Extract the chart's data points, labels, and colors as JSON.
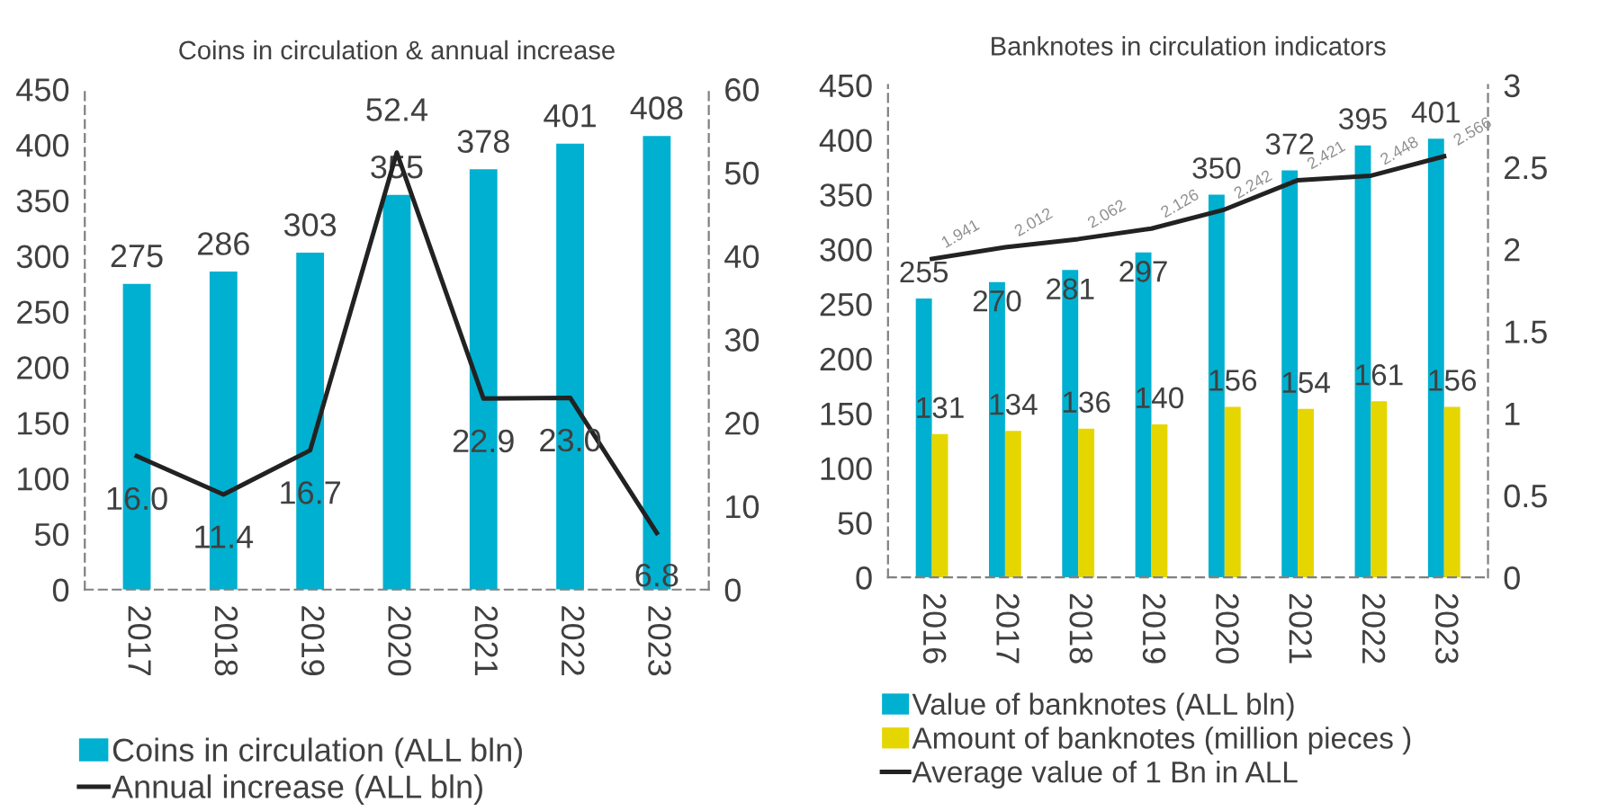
{
  "chart_data": [
    {
      "type": "bar",
      "title": "Coins in circulation & annual increase",
      "categories": [
        "2017",
        "2018",
        "2019",
        "2020",
        "2021",
        "2022",
        "2023"
      ],
      "series": [
        {
          "name": "Coins in circulation (ALL bln)",
          "color": "#00b0d0",
          "values": [
            275,
            286,
            303,
            355,
            378,
            401,
            408
          ],
          "value_labels": [
            "275",
            "286",
            "303",
            "355",
            "378",
            "401",
            "408"
          ]
        },
        {
          "name": "Annual increase (ALL bln)",
          "type": "line",
          "axis": "y2",
          "color": "#222222",
          "values": [
            16.0,
            11.4,
            16.7,
            52.4,
            22.9,
            23.0,
            6.8
          ],
          "value_labels": [
            "16.0",
            "11.4",
            "16.7",
            "52.4",
            "22.9",
            "23.0",
            "6.8"
          ]
        }
      ],
      "ylim": [
        0,
        450
      ],
      "yticks": [
        0,
        50,
        100,
        150,
        200,
        250,
        300,
        350,
        400,
        450
      ],
      "y2lim": [
        0,
        60
      ],
      "y2ticks": [
        0,
        10,
        20,
        30,
        40,
        50,
        60
      ],
      "grid": false,
      "legend": "bottom"
    },
    {
      "type": "bar",
      "title": "Banknotes in circulation indicators",
      "categories": [
        "2016",
        "2017",
        "2018",
        "2019",
        "2020",
        "2021",
        "2022",
        "2023"
      ],
      "series": [
        {
          "name": "Value of banknotes (ALL bln)",
          "color": "#00b0d0",
          "values": [
            255,
            270,
            281,
            297,
            350,
            372,
            395,
            401
          ],
          "value_labels": [
            "255",
            "270",
            "281",
            "297",
            "350",
            "372",
            "395",
            "401"
          ]
        },
        {
          "name": "Amount of banknotes (million pieces )",
          "color": "#e6d600",
          "values": [
            131,
            134,
            136,
            140,
            156,
            154,
            161,
            156
          ],
          "value_labels": [
            "131",
            "134",
            "136",
            "140",
            "156",
            "154",
            "161",
            "156"
          ]
        },
        {
          "name": "Average value of 1 Bn in ALL",
          "type": "line",
          "axis": "y2",
          "color": "#222222",
          "values": [
            1.941,
            2.012,
            2.062,
            2.126,
            2.242,
            2.421,
            2.448,
            2.566
          ],
          "value_labels": [
            "1.941",
            "2.012",
            "2.062",
            "2.126",
            "2.242",
            "2.421",
            "2.448",
            "2.566"
          ]
        }
      ],
      "ylim": [
        0,
        450
      ],
      "yticks": [
        0,
        50,
        100,
        150,
        200,
        250,
        300,
        350,
        400,
        450
      ],
      "y2lim": [
        0,
        3
      ],
      "y2ticks": [
        0,
        0.5,
        1,
        1.5,
        2,
        2.5,
        3
      ],
      "grid": false,
      "legend": "bottom"
    }
  ]
}
